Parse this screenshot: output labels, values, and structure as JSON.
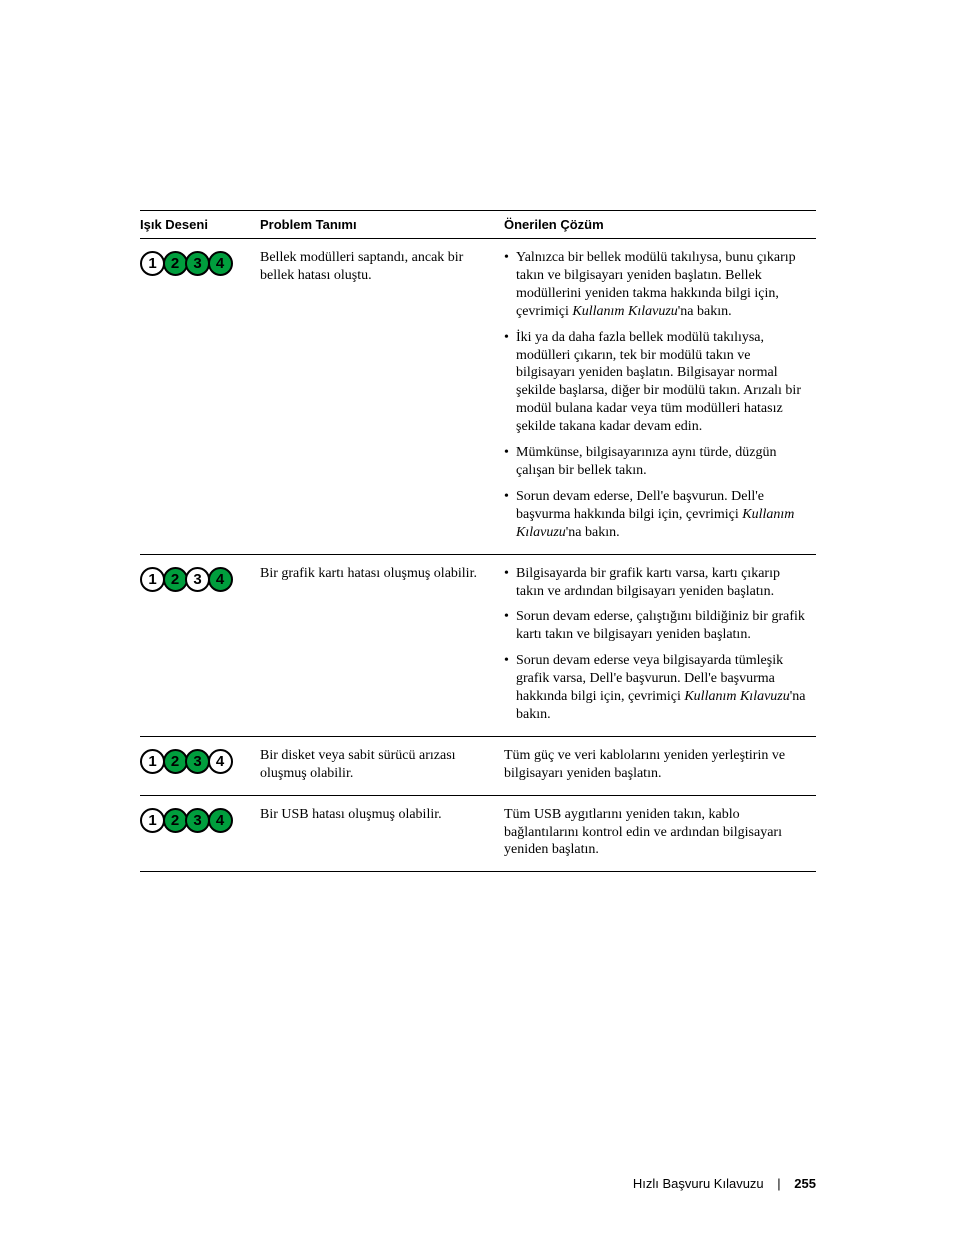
{
  "colors": {
    "led_on": "#009e3d",
    "led_off": "#ffffff",
    "rule": "#000000",
    "text": "#000000",
    "background": "#ffffff"
  },
  "typography": {
    "header_family": "Helvetica, Arial, sans-serif",
    "header_size_pt": 10,
    "body_family": "Times New Roman, Times, serif",
    "body_size_pt": 10.5
  },
  "headers": {
    "pattern": "Işık Deseni",
    "problem": "Problem Tanımı",
    "solution": "Önerilen Çözüm"
  },
  "rows": [
    {
      "pattern": [
        "off",
        "on",
        "on",
        "on"
      ],
      "problem": "Bellek modülleri saptandı, ancak bir bellek hatası oluştu.",
      "bulleted": true,
      "solutions": [
        {
          "pre": "Yalnızca bir bellek modülü takılıysa, bunu çıkarıp takın ve bilgisayarı yeniden başlatın. Bellek modüllerini yeniden takma hakkında bilgi için, çevrimiçi ",
          "em": "Kullanım Kılavuzu",
          "post": "'na bakın."
        },
        {
          "pre": "İki ya da daha fazla bellek modülü takılıysa, modülleri çıkarın, tek bir modülü takın ve bilgisayarı yeniden başlatın. Bilgisayar normal şekilde başlarsa, diğer bir modülü takın. Arızalı bir modül bulana kadar veya tüm modülleri hatasız şekilde takana kadar devam edin.",
          "em": "",
          "post": ""
        },
        {
          "pre": "Mümkünse, bilgisayarınıza aynı türde, düzgün çalışan bir bellek takın.",
          "em": "",
          "post": ""
        },
        {
          "pre": "Sorun devam ederse, Dell'e başvurun. Dell'e başvurma hakkında bilgi için, çevrimiçi ",
          "em": "Kullanım Kılavuzu",
          "post": "'na bakın."
        }
      ]
    },
    {
      "pattern": [
        "off",
        "on",
        "off",
        "on"
      ],
      "problem": "Bir grafik kartı hatası oluşmuş olabilir.",
      "bulleted": true,
      "solutions": [
        {
          "pre": "Bilgisayarda bir grafik kartı varsa, kartı çıkarıp takın ve ardından bilgisayarı yeniden başlatın.",
          "em": "",
          "post": ""
        },
        {
          "pre": "Sorun devam ederse, çalıştığını bildiğiniz bir grafik kartı takın ve bilgisayarı yeniden başlatın.",
          "em": "",
          "post": ""
        },
        {
          "pre": "Sorun devam ederse veya bilgisayarda tümleşik grafik varsa, Dell'e başvurun. Dell'e başvurma hakkında bilgi için, çevrimiçi ",
          "em": "Kullanım Kılavuzu",
          "post": "'na bakın."
        }
      ]
    },
    {
      "pattern": [
        "off",
        "on",
        "on",
        "off"
      ],
      "problem": "Bir disket veya sabit sürücü arızası oluşmuş olabilir.",
      "bulleted": false,
      "solutions": [
        {
          "pre": "Tüm güç ve veri kablolarını yeniden yerleştirin ve bilgisayarı yeniden başlatın.",
          "em": "",
          "post": ""
        }
      ]
    },
    {
      "pattern": [
        "off",
        "on",
        "on",
        "on"
      ],
      "problem": "Bir USB hatası oluşmuş olabilir.",
      "bulleted": false,
      "solutions": [
        {
          "pre": "Tüm USB aygıtlarını yeniden takın, kablo bağlantılarını kontrol edin ve ardından bilgisayarı yeniden başlatın.",
          "em": "",
          "post": ""
        }
      ]
    }
  ],
  "footer": {
    "title": "Hızlı Başvuru Kılavuzu",
    "page": "255"
  }
}
